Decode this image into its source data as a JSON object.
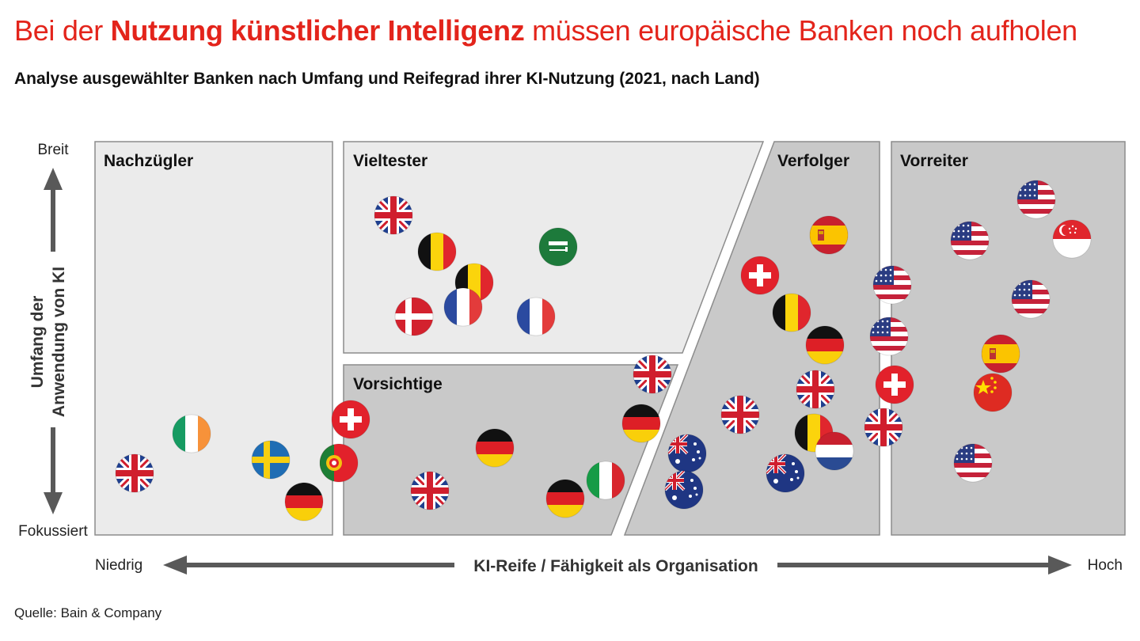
{
  "title": {
    "part1": "Bei der ",
    "bold": "Nutzung künstlicher Intelligenz",
    "part2": " müssen europäische Banken noch aufholen"
  },
  "subtitle": "Analyse ausgewählter Banken nach Umfang und Reifegrad ihrer KI-Nutzung (2021, nach Land)",
  "y_axis": {
    "top": "Breit",
    "bottom": "Fokussiert",
    "title_line1": "Umfang der",
    "title_line2": "Anwendung von KI"
  },
  "x_axis": {
    "left": "Niedrig",
    "right": "Hoch",
    "title": "KI-Reife / Fähigkeit als Organisation"
  },
  "quadrants": {
    "nachzuegler": "Nachzügler",
    "vieltester": "Vieltester",
    "vorsichtige": "Vorsichtige",
    "verfolger": "Verfolger",
    "vorreiter": "Vorreiter"
  },
  "banks": {
    "nachzuegler": [
      "uk",
      "ie",
      "se",
      "de",
      "pt",
      "ch"
    ],
    "vieltester": [
      "uk",
      "be",
      "sa",
      "be",
      "dk",
      "fr",
      "fr"
    ],
    "vorsichtige": [
      "uk",
      "de",
      "de",
      "de",
      "it",
      "uk"
    ],
    "verfolger": [
      "es",
      "ch",
      "be",
      "de",
      "uk",
      "uk",
      "be",
      "nl",
      "au",
      "au",
      "au",
      "us",
      "us",
      "ch",
      "uk"
    ],
    "vorreiter": [
      "us",
      "us",
      "sg",
      "us",
      "es",
      "cn",
      "us"
    ]
  },
  "colors": {
    "accent_red": "#e3241b",
    "light_panel": "#ebebeb",
    "dark_panel": "#c9c9c9",
    "arrow": "#595959"
  },
  "source": "Quelle: Bain & Company"
}
